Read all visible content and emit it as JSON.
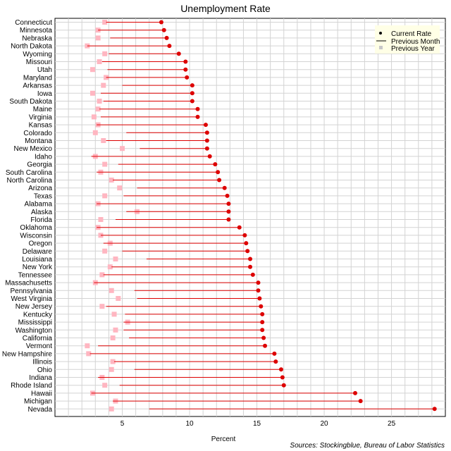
{
  "chart_data": {
    "type": "dot-range",
    "title": "Unemployment Rate",
    "xlabel": "Percent",
    "ylabel": "",
    "source": "Sources: Stockingblue, Bureau of Labor Statistics",
    "xlim": [
      0,
      29
    ],
    "xticks": [
      5,
      10,
      15,
      20,
      25
    ],
    "grid": true,
    "legend_position": "top-right",
    "legend": {
      "current": "Current Rate",
      "previous_month": "Previous Month",
      "previous_year": "Previous Year"
    },
    "colors": {
      "current": "#dd0000",
      "previous_month": "#dd0000",
      "previous_year": "#ffb6c1",
      "grid": "#d3d3d3"
    },
    "categories": [
      "Connecticut",
      "Minnesota",
      "Nebraska",
      "North Dakota",
      "Wyoming",
      "Missouri",
      "Utah",
      "Maryland",
      "Arkansas",
      "Iowa",
      "South Dakota",
      "Maine",
      "Virginia",
      "Kansas",
      "Colorado",
      "Montana",
      "New Mexico",
      "Idaho",
      "Georgia",
      "South Carolina",
      "North Carolina",
      "Arizona",
      "Texas",
      "Alabama",
      "Alaska",
      "Florida",
      "Oklahoma",
      "Wisconsin",
      "Oregon",
      "Delaware",
      "Louisiana",
      "New York",
      "Tennessee",
      "Massachusetts",
      "Pennsylvania",
      "West Virginia",
      "New Jersey",
      "Kentucky",
      "Mississippi",
      "Washington",
      "California",
      "Vermont",
      "New Hampshire",
      "Illinois",
      "Ohio",
      "Indiana",
      "Rhode Island",
      "Hawaii",
      "Michigan",
      "Nevada"
    ],
    "series": [
      {
        "name": "Current Rate",
        "values": [
          7.9,
          8.1,
          8.3,
          8.5,
          9.2,
          9.7,
          9.7,
          9.8,
          10.2,
          10.2,
          10.2,
          10.6,
          10.6,
          11.2,
          11.3,
          11.3,
          11.3,
          11.5,
          11.9,
          12.1,
          12.2,
          12.6,
          12.8,
          12.9,
          12.9,
          12.9,
          13.7,
          14.1,
          14.2,
          14.3,
          14.5,
          14.5,
          14.7,
          15.1,
          15.1,
          15.2,
          15.3,
          15.4,
          15.4,
          15.4,
          15.5,
          15.6,
          16.3,
          16.4,
          16.8,
          16.9,
          17.0,
          22.3,
          22.7,
          28.2
        ]
      },
      {
        "name": "Previous Month",
        "values": [
          3.8,
          3.2,
          4.1,
          2.4,
          4.0,
          3.5,
          3.9,
          3.8,
          5.0,
          3.4,
          3.6,
          3.3,
          3.4,
          3.1,
          5.3,
          3.8,
          6.3,
          2.7,
          4.7,
          3.1,
          4.3,
          6.1,
          5.1,
          3.1,
          5.3,
          4.5,
          3.1,
          3.4,
          3.6,
          5.0,
          6.8,
          4.2,
          3.6,
          2.9,
          5.9,
          6.1,
          3.8,
          5.2,
          5.1,
          5.1,
          5.5,
          3.2,
          2.6,
          4.4,
          5.9,
          3.2,
          4.8,
          2.7,
          4.3,
          7.0
        ]
      },
      {
        "name": "Previous Year",
        "values": [
          3.7,
          3.2,
          3.2,
          2.4,
          3.7,
          3.3,
          2.8,
          3.8,
          3.6,
          2.8,
          3.3,
          3.2,
          2.9,
          3.2,
          3.0,
          3.6,
          5.0,
          3.0,
          3.7,
          3.4,
          4.2,
          4.8,
          3.7,
          3.2,
          6.1,
          3.4,
          3.2,
          3.4,
          4.1,
          3.7,
          4.5,
          4.1,
          3.5,
          3.0,
          4.2,
          4.7,
          3.5,
          4.4,
          5.4,
          4.5,
          4.3,
          2.4,
          2.5,
          4.3,
          4.2,
          3.5,
          3.7,
          2.8,
          4.5,
          4.2
        ]
      }
    ]
  }
}
